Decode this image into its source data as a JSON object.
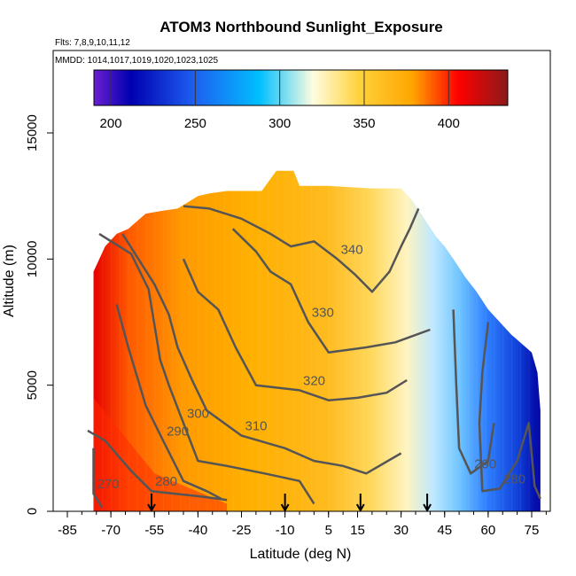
{
  "chart_data": {
    "type": "heatmap",
    "title": "ATOM3 Northbound Sunlight_Exposure",
    "subtitle_flights": "Flts: 7,8,9,10,11,12",
    "subtitle_dates": "MMDD: 1014,1017,1019,1020,1023,1025",
    "xlabel": "Latitude (deg N)",
    "ylabel": "Altitude (m)",
    "xlim": [
      -85,
      85
    ],
    "ylim": [
      0,
      17500
    ],
    "x_ticks": [
      -85,
      -70,
      -55,
      -40,
      -25,
      -10,
      5,
      15,
      30,
      45,
      60,
      75
    ],
    "y_ticks": [
      0,
      5000,
      10000,
      15000
    ],
    "colorbar": {
      "range": [
        190,
        435
      ],
      "ticks": [
        200,
        250,
        300,
        350,
        400
      ],
      "colors": [
        "#6a1fd1",
        "#0000b0",
        "#1e5ef0",
        "#00bfff",
        "#fffde0",
        "#ffd23c",
        "#ffa500",
        "#ff0000",
        "#8b1a1a"
      ]
    },
    "contours": [
      {
        "level": 270,
        "label": "270",
        "points": [
          [
            -76,
            2500
          ],
          [
            -76,
            700
          ],
          [
            -73,
            150
          ]
        ]
      },
      {
        "level": 280,
        "label": "280",
        "points": [
          [
            -78,
            3200
          ],
          [
            -72,
            2800
          ],
          [
            -63,
            1600
          ],
          [
            -56,
            800
          ],
          [
            -48,
            700
          ],
          [
            -40,
            600
          ],
          [
            -30,
            450
          ]
        ]
      },
      {
        "level": 290,
        "label": "290",
        "points": [
          [
            -68,
            8200
          ],
          [
            -64,
            6500
          ],
          [
            -58,
            4200
          ],
          [
            -52,
            2800
          ],
          [
            -45,
            1200
          ],
          [
            -37,
            800
          ],
          [
            -32,
            500
          ]
        ]
      },
      {
        "level": 300,
        "label": "300",
        "points": [
          [
            -74,
            11000
          ],
          [
            -63,
            10200
          ],
          [
            -57,
            8800
          ],
          [
            -53,
            6000
          ],
          [
            -50,
            5000
          ],
          [
            -45,
            3500
          ],
          [
            -40,
            2000
          ],
          [
            -30,
            1800
          ],
          [
            -17,
            1500
          ],
          [
            -5,
            1200
          ],
          [
            0,
            300
          ]
        ]
      },
      {
        "level": 310,
        "label": "310",
        "points": [
          [
            -66,
            11000
          ],
          [
            -55,
            9000
          ],
          [
            -50,
            7800
          ],
          [
            -47,
            6500
          ],
          [
            -42,
            5200
          ],
          [
            -37,
            4000
          ],
          [
            -25,
            3000
          ],
          [
            -10,
            2500
          ],
          [
            0,
            2000
          ],
          [
            10,
            1800
          ],
          [
            18,
            1500
          ],
          [
            30,
            2300
          ]
        ]
      },
      {
        "level": 320,
        "label": "320",
        "points": [
          [
            -45,
            10000
          ],
          [
            -40,
            8700
          ],
          [
            -33,
            8000
          ],
          [
            -27,
            6500
          ],
          [
            -20,
            5000
          ],
          [
            -5,
            4800
          ],
          [
            5,
            4400
          ],
          [
            15,
            4500
          ],
          [
            25,
            4700
          ],
          [
            32,
            5200
          ]
        ]
      },
      {
        "level": 330,
        "label": "330",
        "points": [
          [
            -28,
            11200
          ],
          [
            -20,
            10300
          ],
          [
            -15,
            9500
          ],
          [
            -8,
            9000
          ],
          [
            -2,
            7500
          ],
          [
            5,
            6300
          ],
          [
            18,
            6500
          ],
          [
            28,
            6700
          ],
          [
            40,
            7200
          ]
        ]
      },
      {
        "level": 340,
        "label": "340",
        "points": [
          [
            -45,
            12100
          ],
          [
            -36,
            12000
          ],
          [
            -25,
            11600
          ],
          [
            -15,
            11000
          ],
          [
            -8,
            10500
          ],
          [
            0,
            10700
          ],
          [
            8,
            10000
          ],
          [
            14,
            9400
          ],
          [
            20,
            8700
          ],
          [
            26,
            9500
          ],
          [
            30,
            10500
          ],
          [
            33,
            11200
          ],
          [
            36,
            12000
          ]
        ]
      },
      {
        "level": 290,
        "label": "290",
        "points": [
          [
            48,
            8000
          ],
          [
            49,
            5000
          ],
          [
            50,
            2500
          ],
          [
            54,
            1500
          ],
          [
            60,
            2000
          ],
          [
            62,
            3500
          ]
        ]
      },
      {
        "level": 280,
        "label": "280",
        "points": [
          [
            60,
            7500
          ],
          [
            58,
            5500
          ],
          [
            57,
            3500
          ],
          [
            58,
            800
          ],
          [
            64,
            900
          ],
          [
            70,
            2000
          ],
          [
            74,
            3500
          ],
          [
            76,
            1000
          ],
          [
            78,
            500
          ]
        ]
      }
    ],
    "markers_latitude": [
      -56,
      -10,
      16,
      39
    ]
  }
}
